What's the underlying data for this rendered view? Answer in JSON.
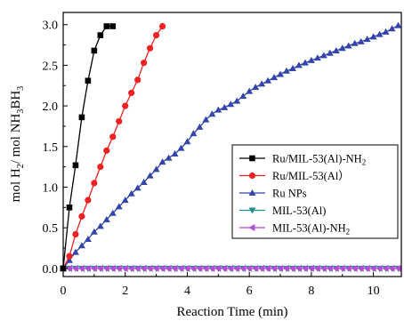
{
  "chart_data": {
    "type": "line",
    "xlabel": "Reaction Time (min)",
    "ylabel": {
      "base": "mol H",
      "sub1": "2",
      "mid": "/ mol NH",
      "sub2": "3",
      "mid2": "BH",
      "sub3": "3"
    },
    "xlim": [
      0,
      10.9
    ],
    "ylim": [
      -0.1,
      3.15
    ],
    "xticks": [
      0,
      2,
      4,
      6,
      8,
      10
    ],
    "yticks": [
      0.0,
      0.5,
      1.0,
      1.5,
      2.0,
      2.5,
      3.0
    ],
    "ytick_labels": [
      "0.0",
      "0.5",
      "1.0",
      "1.5",
      "2.0",
      "2.5",
      "3.0"
    ],
    "grid": false,
    "legend_position": "center-right",
    "series": [
      {
        "name": "Ru/MIL-53(Al)-NH",
        "name_sub": "2",
        "color": "#000000",
        "marker": "square",
        "x": [
          0,
          0.2,
          0.4,
          0.6,
          0.8,
          1.0,
          1.2,
          1.4,
          1.6
        ],
        "y": [
          0.0,
          0.75,
          1.27,
          1.86,
          2.31,
          2.68,
          2.87,
          2.98,
          2.98
        ]
      },
      {
        "name": "Ru/MIL-53(Al）",
        "color": "#ee2222",
        "marker": "circle",
        "x": [
          0,
          0.2,
          0.4,
          0.6,
          0.8,
          1.0,
          1.2,
          1.4,
          1.6,
          1.8,
          2.0,
          2.2,
          2.4,
          2.6,
          2.8,
          3.0,
          3.2
        ],
        "y": [
          0.0,
          0.15,
          0.42,
          0.64,
          0.84,
          1.05,
          1.25,
          1.45,
          1.62,
          1.81,
          2.0,
          2.16,
          2.32,
          2.53,
          2.71,
          2.87,
          2.98
        ]
      },
      {
        "name": "Ru NPs",
        "color": "#3344aa",
        "marker": "triangle-up",
        "x": [
          0,
          0.2,
          0.4,
          0.6,
          0.8,
          1.0,
          1.2,
          1.4,
          1.6,
          1.8,
          2.0,
          2.2,
          2.4,
          2.6,
          2.8,
          3.0,
          3.2,
          3.4,
          3.6,
          3.8,
          4.0,
          4.2,
          4.4,
          4.6,
          4.8,
          5.0,
          5.2,
          5.4,
          5.6,
          5.8,
          6.0,
          6.2,
          6.4,
          6.6,
          6.8,
          7.0,
          7.2,
          7.4,
          7.6,
          7.8,
          8.0,
          8.2,
          8.4,
          8.6,
          8.8,
          9.0,
          9.2,
          9.4,
          9.6,
          9.8,
          10.0,
          10.2,
          10.4,
          10.6,
          10.8
        ],
        "y": [
          0.0,
          0.1,
          0.2,
          0.28,
          0.36,
          0.45,
          0.52,
          0.6,
          0.68,
          0.76,
          0.84,
          0.92,
          0.99,
          1.06,
          1.14,
          1.22,
          1.31,
          1.36,
          1.41,
          1.48,
          1.56,
          1.66,
          1.74,
          1.83,
          1.9,
          1.95,
          1.98,
          2.02,
          2.06,
          2.12,
          2.18,
          2.23,
          2.27,
          2.31,
          2.35,
          2.39,
          2.43,
          2.46,
          2.5,
          2.53,
          2.56,
          2.59,
          2.62,
          2.65,
          2.68,
          2.71,
          2.74,
          2.77,
          2.79,
          2.82,
          2.85,
          2.88,
          2.91,
          2.95,
          2.99
        ]
      },
      {
        "name": "MIL-53(Al)",
        "color": "#1f8f8f",
        "marker": "triangle-down",
        "x": [
          0,
          0.2,
          0.4,
          0.6,
          0.8,
          1.0,
          1.2,
          1.4,
          1.6,
          1.8,
          2.0,
          2.2,
          2.4,
          2.6,
          2.8,
          3.0,
          3.2,
          3.4,
          3.6,
          3.8,
          4.0,
          4.2,
          4.4,
          4.6,
          4.8,
          5.0,
          5.2,
          5.4,
          5.6,
          5.8,
          6.0,
          6.2,
          6.4,
          6.6,
          6.8,
          7.0,
          7.2,
          7.4,
          7.6,
          7.8,
          8.0,
          8.2,
          8.4,
          8.6,
          8.8,
          9.0,
          9.2,
          9.4,
          9.6,
          9.8,
          10.0,
          10.2,
          10.4,
          10.6,
          10.8
        ],
        "y": [
          0.0,
          0.0,
          0.0,
          0.0,
          0.0,
          0.0,
          0.0,
          0.0,
          0.0,
          0.0,
          0.0,
          0.0,
          0.0,
          0.0,
          0.0,
          0.0,
          0.0,
          0.0,
          0.0,
          0.0,
          0.0,
          0.0,
          0.0,
          0.0,
          0.0,
          0.0,
          0.0,
          0.0,
          0.0,
          0.0,
          0.0,
          0.0,
          0.0,
          0.0,
          0.0,
          0.0,
          0.0,
          0.0,
          0.0,
          0.0,
          0.0,
          0.0,
          0.0,
          0.0,
          0.0,
          0.0,
          0.0,
          0.0,
          0.0,
          0.0,
          0.0,
          0.0,
          0.0,
          0.0,
          0.0
        ]
      },
      {
        "name": "MIL-53(Al)-NH",
        "name_sub": "2",
        "color": "#b84ad6",
        "marker": "triangle-left",
        "x": [
          0,
          0.2,
          0.4,
          0.6,
          0.8,
          1.0,
          1.2,
          1.4,
          1.6,
          1.8,
          2.0,
          2.2,
          2.4,
          2.6,
          2.8,
          3.0,
          3.2,
          3.4,
          3.6,
          3.8,
          4.0,
          4.2,
          4.4,
          4.6,
          4.8,
          5.0,
          5.2,
          5.4,
          5.6,
          5.8,
          6.0,
          6.2,
          6.4,
          6.6,
          6.8,
          7.0,
          7.2,
          7.4,
          7.6,
          7.8,
          8.0,
          8.2,
          8.4,
          8.6,
          8.8,
          9.0,
          9.2,
          9.4,
          9.6,
          9.8,
          10.0,
          10.2,
          10.4,
          10.6,
          10.8
        ],
        "y": [
          0.0,
          0.0,
          0.0,
          0.0,
          0.0,
          0.0,
          0.0,
          0.0,
          0.0,
          0.0,
          0.0,
          0.0,
          0.0,
          0.0,
          0.0,
          0.0,
          0.0,
          0.0,
          0.0,
          0.0,
          0.0,
          0.0,
          0.0,
          0.0,
          0.0,
          0.0,
          0.0,
          0.0,
          0.0,
          0.0,
          0.0,
          0.0,
          0.0,
          0.0,
          0.0,
          0.0,
          0.0,
          0.0,
          0.0,
          0.0,
          0.0,
          0.0,
          0.0,
          0.0,
          0.0,
          0.0,
          0.0,
          0.0,
          0.0,
          0.0,
          0.0,
          0.0,
          0.0,
          0.0,
          0.0
        ]
      }
    ]
  }
}
